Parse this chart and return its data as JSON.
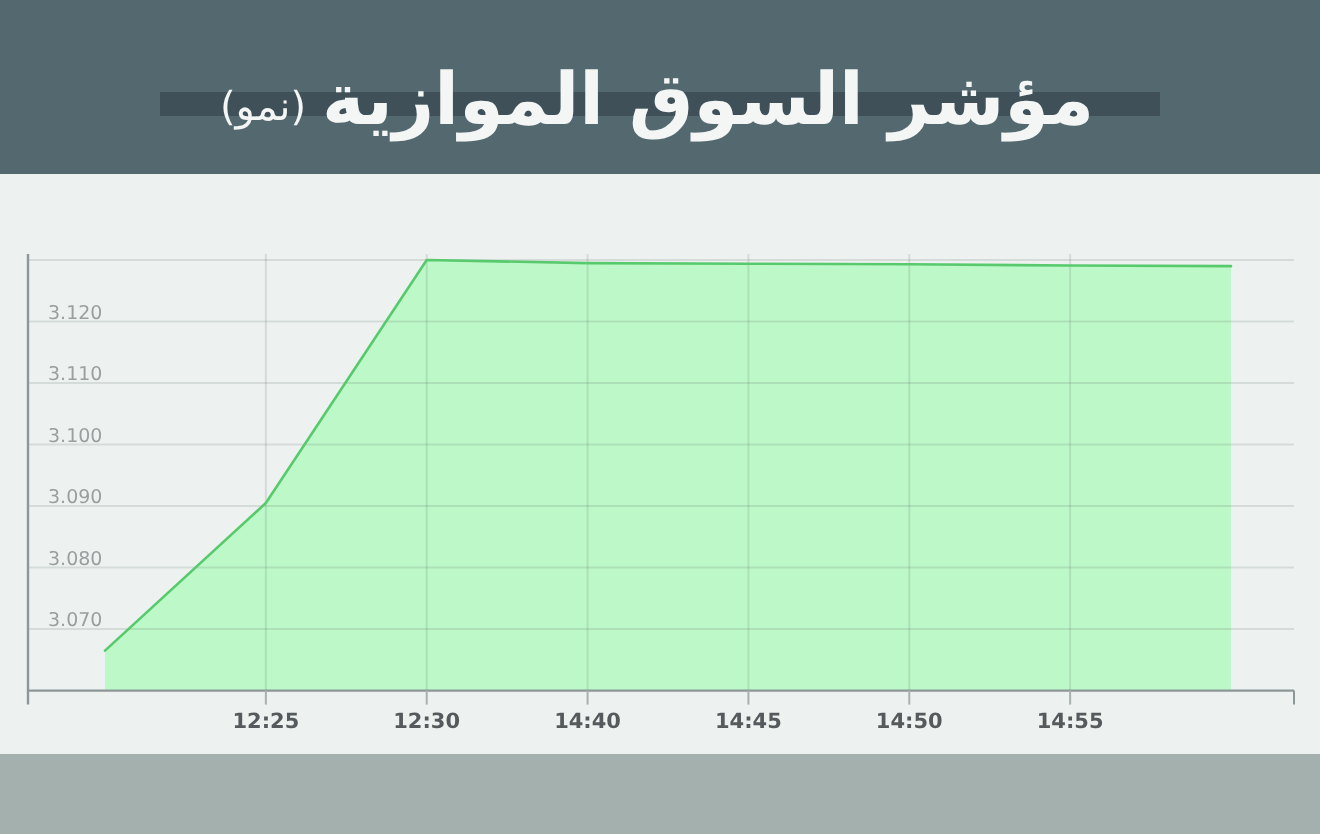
{
  "chart_data": {
    "type": "area",
    "title": "مؤشر السوق الموازية",
    "subtitle": "(نمو)",
    "categories": [
      null,
      "12:25",
      "12:30",
      "14:40",
      "14:45",
      "14:50",
      "14:55",
      null
    ],
    "series": [
      {
        "color": "#bdf9c8",
        "values": [
          3.0665,
          3.0905,
          3.13,
          3.1295,
          3.1294,
          3.1293,
          3.1291,
          3.129
        ]
      }
    ],
    "ylim": [
      3.06,
      3.13
    ],
    "yticks": [
      {
        "value": 3.07,
        "label": "3.070"
      },
      {
        "value": 3.08,
        "label": "3.080"
      },
      {
        "value": 3.09,
        "label": "3.090"
      },
      {
        "value": 3.1,
        "label": "3.100"
      },
      {
        "value": 3.11,
        "label": "3.110"
      },
      {
        "value": 3.12,
        "label": "3.120"
      },
      {
        "value": 3.13,
        "label": null
      }
    ],
    "grid": true
  }
}
